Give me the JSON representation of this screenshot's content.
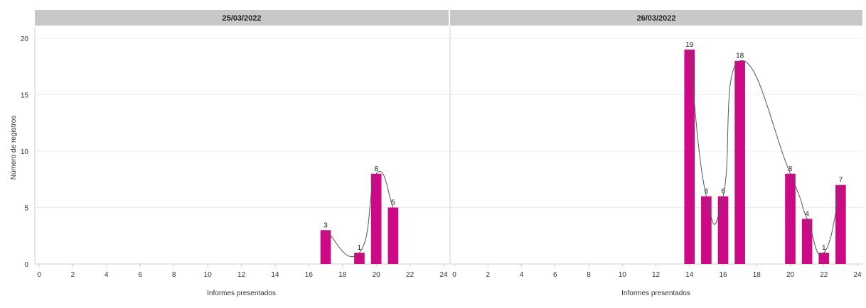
{
  "chart_data": {
    "type": "bar",
    "ylabel": "Número de registros",
    "ylim": [
      0,
      21
    ],
    "yticks": [
      0,
      5,
      10,
      15,
      20
    ],
    "xlim": [
      0,
      24
    ],
    "xticks": [
      0,
      2,
      4,
      6,
      8,
      10,
      12,
      14,
      16,
      18,
      20,
      22,
      24
    ],
    "bar_color": "#cc0a86",
    "grid": true,
    "panels": [
      {
        "title": "25/03/2022",
        "xlabel": "Informes presentados",
        "x": [
          17,
          19,
          20,
          21
        ],
        "values": [
          3,
          1,
          8,
          5
        ]
      },
      {
        "title": "26/03/2022",
        "xlabel": "Informes presentados",
        "x": [
          14,
          15,
          16,
          17,
          20,
          21,
          22,
          23
        ],
        "values": [
          19,
          6,
          6,
          18,
          8,
          4,
          1,
          7
        ]
      }
    ]
  }
}
